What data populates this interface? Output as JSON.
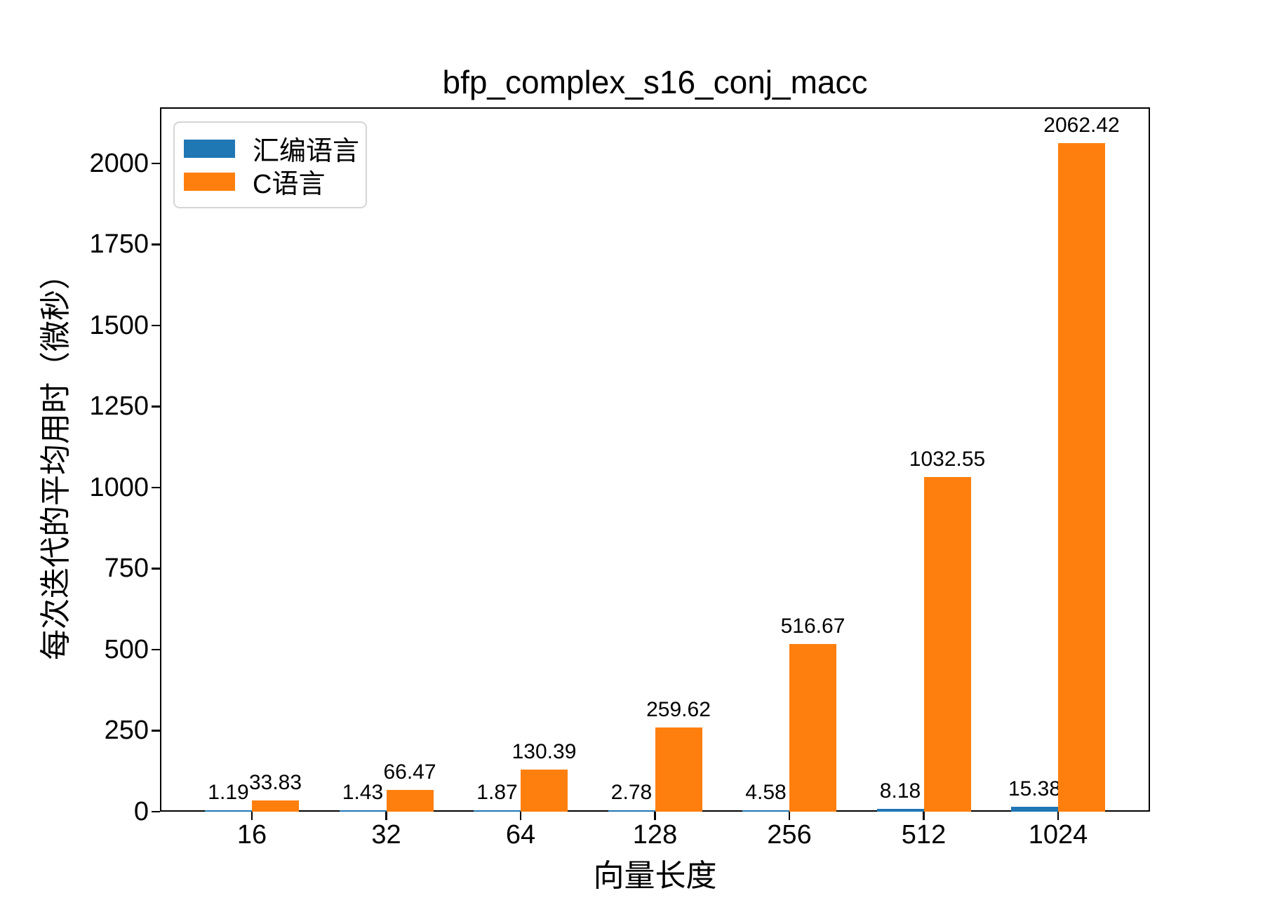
{
  "chart_data": {
    "type": "bar",
    "title": "bfp_complex_s16_conj_macc",
    "xlabel": "向量长度",
    "ylabel": "每次迭代的平均用时（微秒）",
    "categories": [
      "16",
      "32",
      "64",
      "128",
      "256",
      "512",
      "1024"
    ],
    "series": [
      {
        "name": "汇编语言",
        "color": "#1f77b4",
        "values": [
          1.19,
          1.43,
          1.87,
          2.78,
          4.58,
          8.18,
          15.38
        ]
      },
      {
        "name": "C语言",
        "color": "#ff7f0e",
        "values": [
          33.83,
          66.47,
          130.39,
          259.62,
          516.67,
          1032.55,
          2062.42
        ]
      }
    ],
    "yticks": [
      0,
      250,
      500,
      750,
      1000,
      1250,
      1500,
      1750,
      2000
    ],
    "ylim": [
      0,
      2173
    ],
    "grid": false,
    "legend_position": "upper-left",
    "value_label_decimals": 2
  }
}
